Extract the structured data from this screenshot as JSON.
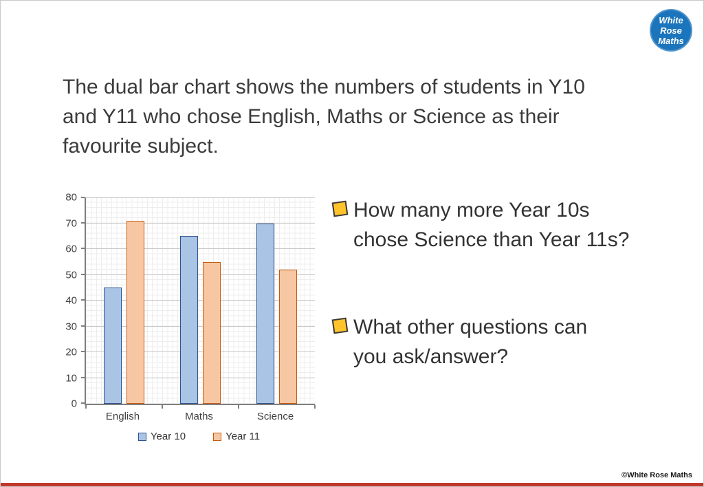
{
  "slide": {
    "title": "The dual bar chart shows the numbers of students in Y10\nand Y11 who chose English, Maths or Science as their\nfavourite subject.",
    "questions": [
      "How many more Year 10s\nchose Science than Year 11s?",
      "What other questions can\nyou ask/answer?"
    ],
    "copyright": "©White Rose Maths"
  },
  "logo": {
    "lines": [
      "White",
      "Rose",
      "Maths"
    ]
  },
  "colors": {
    "accent_bar": "#C0392B",
    "bullet": "#FFC32B",
    "logo_blue": "#1B75BC"
  },
  "chart_data": {
    "type": "bar",
    "title": "",
    "xlabel": "",
    "ylabel": "",
    "categories": [
      "English",
      "Maths",
      "Science"
    ],
    "series": [
      {
        "name": "Year 10",
        "values": [
          45,
          65,
          70
        ],
        "fill": "#A9C4E4",
        "border": "#31538F"
      },
      {
        "name": "Year 11",
        "values": [
          71,
          55,
          52
        ],
        "fill": "#F6C7A2",
        "border": "#C55A11"
      }
    ],
    "ylim": [
      0,
      80
    ],
    "ytick_step": 10,
    "grid": true,
    "legend_position": "bottom"
  }
}
